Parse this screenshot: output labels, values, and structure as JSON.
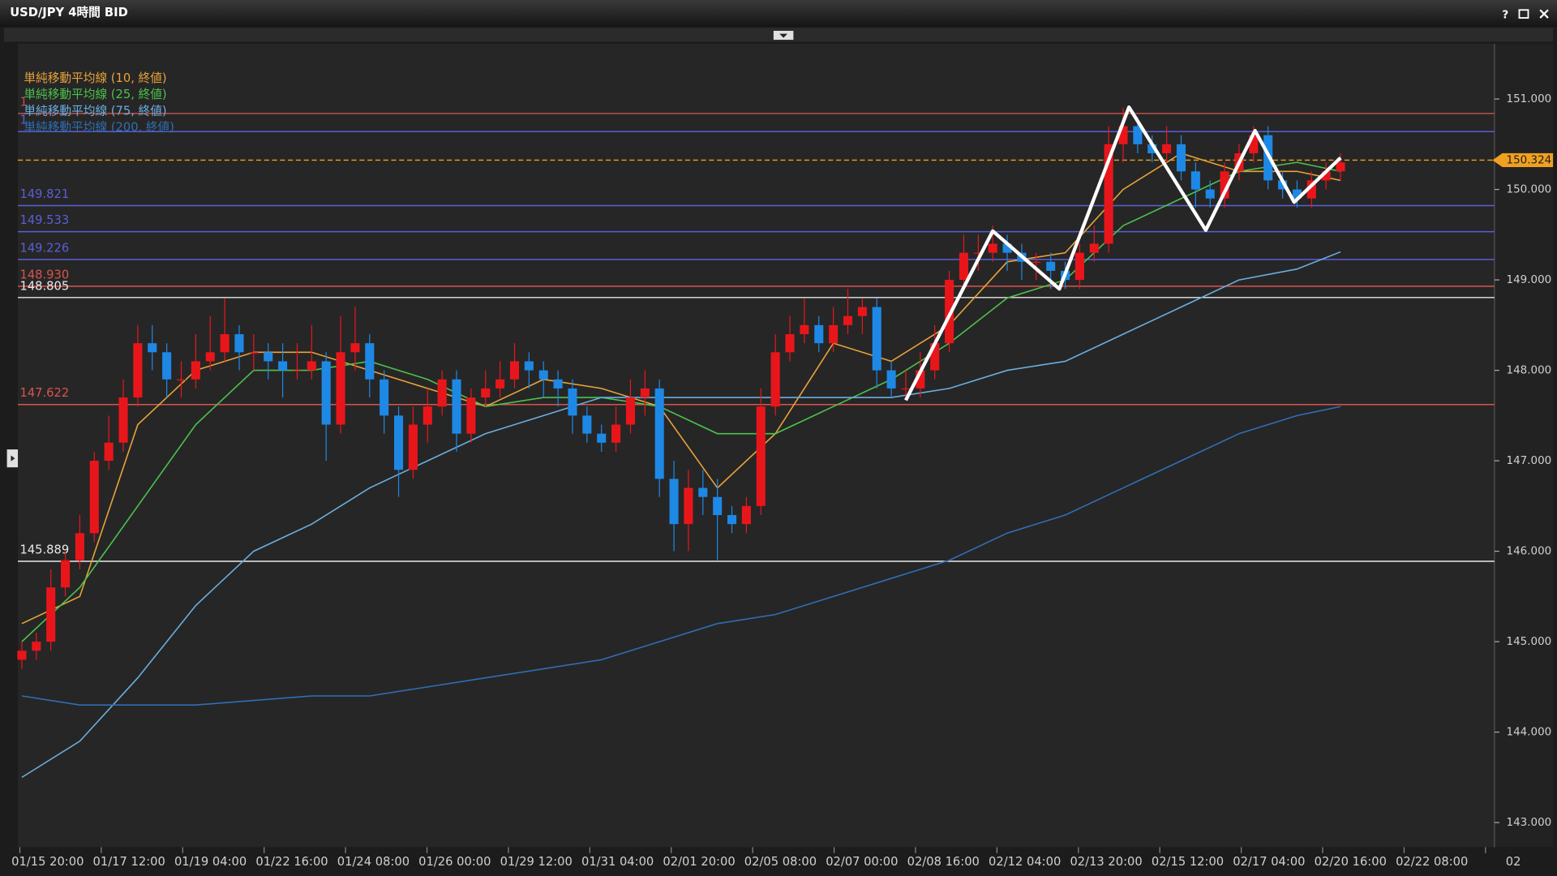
{
  "window": {
    "title": "USD/JPY 4時間 BID",
    "help": "?"
  },
  "chart_data": {
    "type": "candlestick",
    "up_color": "#e8161b",
    "down_color": "#1e88e5",
    "ylim": [
      142.75,
      151.6
    ],
    "yticks": [
      {
        "value": 143,
        "label": "143.000"
      },
      {
        "value": 144,
        "label": "144.000"
      },
      {
        "value": 145,
        "label": "145.000"
      },
      {
        "value": 146,
        "label": "146.000"
      },
      {
        "value": 147,
        "label": "147.000"
      },
      {
        "value": 148,
        "label": "148.000"
      },
      {
        "value": 149,
        "label": "149.000"
      },
      {
        "value": 150,
        "label": "150.000"
      },
      {
        "value": 151,
        "label": "151.000"
      }
    ],
    "x_labels": [
      "01/15 20:00",
      "01/17 12:00",
      "01/19 04:00",
      "01/22 16:00",
      "01/24 08:00",
      "01/26 00:00",
      "01/29 12:00",
      "01/31 04:00",
      "02/01 20:00",
      "02/05 08:00",
      "02/07 00:00",
      "02/08 16:00",
      "02/12 04:00",
      "02/13 20:00",
      "02/15 12:00",
      "02/17 04:00",
      "02/20 16:00",
      "02/22 08:00",
      "02"
    ],
    "candles": [
      [
        144.8,
        145.0,
        144.7,
        144.9
      ],
      [
        144.9,
        145.1,
        144.8,
        145.0
      ],
      [
        145.0,
        145.8,
        144.9,
        145.6
      ],
      [
        145.6,
        146.0,
        145.5,
        145.9
      ],
      [
        145.9,
        146.4,
        145.8,
        146.2
      ],
      [
        146.2,
        147.1,
        146.1,
        147.0
      ],
      [
        147.0,
        147.5,
        146.9,
        147.2
      ],
      [
        147.2,
        147.9,
        147.1,
        147.7
      ],
      [
        147.7,
        148.5,
        147.6,
        148.3
      ],
      [
        148.3,
        148.5,
        148.0,
        148.2
      ],
      [
        148.2,
        148.3,
        147.7,
        147.9
      ],
      [
        147.9,
        148.1,
        147.7,
        147.9
      ],
      [
        147.9,
        148.4,
        147.8,
        148.1
      ],
      [
        148.1,
        148.6,
        148.0,
        148.2
      ],
      [
        148.2,
        148.8,
        148.1,
        148.4
      ],
      [
        148.4,
        148.5,
        148.0,
        148.2
      ],
      [
        148.2,
        148.4,
        148.0,
        148.2
      ],
      [
        148.2,
        148.3,
        147.9,
        148.1
      ],
      [
        148.1,
        148.3,
        147.7,
        148.0
      ],
      [
        148.0,
        148.3,
        147.9,
        148.0
      ],
      [
        148.0,
        148.5,
        147.9,
        148.1
      ],
      [
        148.1,
        148.2,
        147.0,
        147.4
      ],
      [
        147.4,
        148.6,
        147.3,
        148.2
      ],
      [
        148.2,
        148.7,
        148.0,
        148.3
      ],
      [
        148.3,
        148.4,
        147.7,
        147.9
      ],
      [
        147.9,
        148.0,
        147.3,
        147.5
      ],
      [
        147.5,
        147.6,
        146.6,
        146.9
      ],
      [
        146.9,
        147.6,
        146.8,
        147.4
      ],
      [
        147.4,
        147.8,
        147.2,
        147.6
      ],
      [
        147.6,
        148.0,
        147.5,
        147.9
      ],
      [
        147.9,
        148.0,
        147.1,
        147.3
      ],
      [
        147.3,
        147.8,
        147.2,
        147.7
      ],
      [
        147.7,
        148.0,
        147.6,
        147.8
      ],
      [
        147.8,
        148.1,
        147.7,
        147.9
      ],
      [
        147.9,
        148.3,
        147.8,
        148.1
      ],
      [
        148.1,
        148.2,
        147.8,
        148.0
      ],
      [
        148.0,
        148.1,
        147.7,
        147.9
      ],
      [
        147.9,
        148.0,
        147.6,
        147.8
      ],
      [
        147.8,
        147.9,
        147.3,
        147.5
      ],
      [
        147.5,
        147.6,
        147.2,
        147.3
      ],
      [
        147.3,
        147.4,
        147.1,
        147.2
      ],
      [
        147.2,
        147.6,
        147.1,
        147.4
      ],
      [
        147.4,
        147.9,
        147.3,
        147.7
      ],
      [
        147.7,
        148.0,
        147.5,
        147.8
      ],
      [
        147.8,
        147.9,
        146.6,
        146.8
      ],
      [
        146.8,
        147.0,
        146.0,
        146.3
      ],
      [
        146.3,
        146.9,
        146.0,
        146.7
      ],
      [
        146.7,
        146.9,
        146.4,
        146.6
      ],
      [
        146.6,
        146.8,
        145.9,
        146.4
      ],
      [
        146.4,
        146.5,
        146.2,
        146.3
      ],
      [
        146.3,
        146.6,
        146.2,
        146.5
      ],
      [
        146.5,
        147.8,
        146.4,
        147.6
      ],
      [
        147.6,
        148.4,
        147.5,
        148.2
      ],
      [
        148.2,
        148.6,
        148.1,
        148.4
      ],
      [
        148.4,
        148.8,
        148.3,
        148.5
      ],
      [
        148.5,
        148.6,
        148.2,
        148.3
      ],
      [
        148.3,
        148.7,
        148.2,
        148.5
      ],
      [
        148.5,
        148.9,
        148.4,
        148.6
      ],
      [
        148.6,
        148.8,
        148.4,
        148.7
      ],
      [
        148.7,
        148.8,
        147.8,
        148.0
      ],
      [
        148.0,
        148.1,
        147.7,
        147.8
      ],
      [
        147.8,
        148.0,
        147.7,
        147.8
      ],
      [
        147.8,
        148.2,
        147.7,
        148.0
      ],
      [
        148.0,
        148.5,
        147.9,
        148.3
      ],
      [
        148.3,
        149.1,
        148.2,
        149.0
      ],
      [
        149.0,
        149.5,
        148.9,
        149.3
      ],
      [
        149.3,
        149.5,
        149.1,
        149.3
      ],
      [
        149.3,
        149.6,
        149.2,
        149.4
      ],
      [
        149.4,
        149.5,
        149.1,
        149.3
      ],
      [
        149.3,
        149.4,
        149.0,
        149.2
      ],
      [
        149.2,
        149.3,
        149.0,
        149.2
      ],
      [
        149.2,
        149.3,
        148.9,
        149.1
      ],
      [
        149.1,
        149.2,
        148.9,
        149.0
      ],
      [
        149.0,
        149.4,
        148.9,
        149.3
      ],
      [
        149.3,
        149.6,
        149.2,
        149.4
      ],
      [
        149.4,
        150.7,
        149.3,
        150.5
      ],
      [
        150.5,
        150.9,
        150.3,
        150.7
      ],
      [
        150.7,
        150.8,
        150.4,
        150.5
      ],
      [
        150.5,
        150.6,
        150.3,
        150.4
      ],
      [
        150.4,
        150.7,
        150.3,
        150.5
      ],
      [
        150.5,
        150.6,
        150.1,
        150.2
      ],
      [
        150.2,
        150.3,
        149.8,
        150.0
      ],
      [
        150.0,
        150.1,
        149.8,
        149.9
      ],
      [
        149.9,
        150.3,
        149.8,
        150.2
      ],
      [
        150.2,
        150.5,
        150.1,
        150.4
      ],
      [
        150.4,
        150.7,
        150.3,
        150.6
      ],
      [
        150.6,
        150.7,
        150.0,
        150.1
      ],
      [
        150.1,
        150.2,
        149.9,
        150.0
      ],
      [
        150.0,
        150.1,
        149.8,
        149.9
      ],
      [
        149.9,
        150.2,
        149.8,
        150.1
      ],
      [
        150.1,
        150.3,
        150.0,
        150.2
      ],
      [
        150.2,
        150.4,
        150.1,
        150.3
      ]
    ],
    "ma_x": [
      0,
      4,
      8,
      12,
      16,
      20,
      24,
      28,
      32,
      36,
      40,
      44,
      48,
      52,
      56,
      60,
      64,
      68,
      72,
      76,
      80,
      84,
      88,
      91
    ],
    "series": [
      {
        "name": "単純移動平均線 (10, 終値)",
        "color": "#e8a33a",
        "values": [
          145.2,
          145.5,
          147.4,
          148.0,
          148.2,
          148.2,
          148.0,
          147.8,
          147.6,
          147.9,
          147.8,
          147.6,
          146.7,
          147.3,
          148.3,
          148.1,
          148.5,
          149.2,
          149.3,
          150.0,
          150.4,
          150.2,
          150.2,
          150.1
        ]
      },
      {
        "name": "単純移動平均線 (25, 終値)",
        "color": "#4cc24c",
        "values": [
          145.0,
          145.6,
          146.5,
          147.4,
          148.0,
          148.0,
          148.1,
          147.9,
          147.6,
          147.7,
          147.7,
          147.6,
          147.3,
          147.3,
          147.6,
          147.9,
          148.3,
          148.8,
          149.0,
          149.6,
          149.9,
          150.2,
          150.3,
          150.2
        ]
      },
      {
        "name": "単純移動平均線 (75, 終値)",
        "color": "#6aaee0",
        "values": [
          143.5,
          143.9,
          144.6,
          145.4,
          146.0,
          146.3,
          146.7,
          147.0,
          147.3,
          147.5,
          147.7,
          147.7,
          147.7,
          147.7,
          147.7,
          147.7,
          147.8,
          148.0,
          148.1,
          148.4,
          148.7,
          149.0,
          149.12,
          149.31
        ]
      },
      {
        "name": "単純移動平均線 (200, 終値)",
        "color": "#2f6eb5",
        "values": [
          144.4,
          144.3,
          144.3,
          144.3,
          144.35,
          144.4,
          144.4,
          144.5,
          144.6,
          144.7,
          144.8,
          145.0,
          145.2,
          145.3,
          145.5,
          145.7,
          145.9,
          146.2,
          146.4,
          146.7,
          147.0,
          147.3,
          147.5,
          147.6
        ]
      }
    ],
    "levels": [
      {
        "value": 150.84,
        "label": "1",
        "color": "#c0504d"
      },
      {
        "value": 150.64,
        "label": "1",
        "color": "#5a5fd6"
      },
      {
        "value": 149.821,
        "color": "#5a5fd6"
      },
      {
        "value": 149.533,
        "color": "#5a5fd6"
      },
      {
        "value": 149.226,
        "color": "#5a5fd6"
      },
      {
        "value": 148.93,
        "label": "148.930",
        "color": "#d9534f"
      },
      {
        "value": 148.805,
        "color": "#e8e8e8"
      },
      {
        "value": 147.622,
        "color": "#d9534f"
      },
      {
        "value": 145.889,
        "color": "#e8e8e8"
      }
    ],
    "current": {
      "value": 150.324,
      "label": "150.324",
      "color": "#f0a020"
    },
    "zigzag": {
      "color": "#ffffff",
      "x": [
        61.0,
        67.0,
        71.6,
        76.4,
        81.7,
        85.1,
        87.8,
        91.0
      ],
      "values": [
        147.67,
        149.54,
        148.9,
        150.91,
        149.55,
        150.65,
        149.86,
        150.35
      ]
    }
  }
}
